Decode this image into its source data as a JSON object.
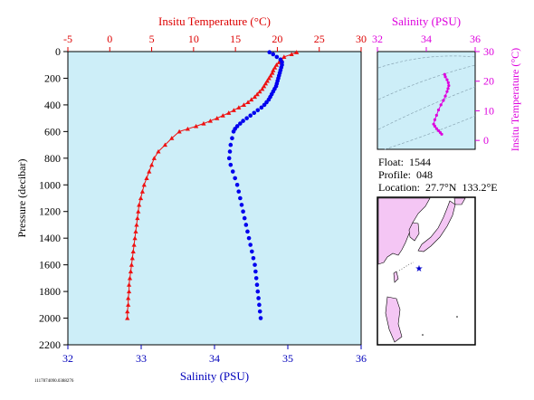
{
  "main_chart": {
    "top_axis_title": "Insitu Temperature (°C)",
    "bottom_axis_title": "Salinity (PSU)",
    "left_axis_title": "Pressure (decibar)",
    "temp_ticks": [
      "-5",
      "0",
      "5",
      "10",
      "15",
      "20",
      "25",
      "30"
    ],
    "sal_ticks": [
      "32",
      "33",
      "34",
      "35",
      "36"
    ],
    "pressure_ticks": [
      "0",
      "200",
      "400",
      "600",
      "800",
      "1000",
      "1200",
      "1400",
      "1600",
      "1800",
      "2000",
      "2200"
    ],
    "colors": {
      "temperature": "#ee1111",
      "salinity": "#0000ee",
      "plot_bg": "#cdeef8",
      "axis_title": "#dd0000"
    }
  },
  "ts_chart": {
    "top_axis_title": "Salinity (PSU)",
    "right_axis_title": "Insitu Temperature (°C)",
    "sal_ticks": [
      "32",
      "34",
      "36"
    ],
    "temp_ticks": [
      "0",
      "10",
      "20",
      "30"
    ],
    "color": "#dd00dd"
  },
  "info": {
    "float_line": "Float:  1544",
    "profile_line": "Profile:  048",
    "location_line": "Location:  27.7°N  133.2°E"
  },
  "footer_code": "1117874090.0388276",
  "chart_data": [
    {
      "type": "scatter",
      "title": "",
      "x_top_label": "Insitu Temperature (°C)",
      "x_top_range": [
        -5,
        30
      ],
      "x_bottom_label": "Salinity (PSU)",
      "x_bottom_range": [
        32,
        36
      ],
      "ylabel": "Pressure (decibar)",
      "ylim": [
        2200,
        0
      ],
      "series": [
        {
          "axis": "top",
          "marker": "triangle",
          "color": "#ee1111",
          "points": [
            [
              22.3,
              5
            ],
            [
              21.7,
              20
            ],
            [
              20.8,
              40
            ],
            [
              20.5,
              60
            ],
            [
              20.2,
              80
            ],
            [
              19.9,
              100
            ],
            [
              19.7,
              120
            ],
            [
              19.5,
              140
            ],
            [
              19.4,
              160
            ],
            [
              19.2,
              180
            ],
            [
              19.0,
              200
            ],
            [
              18.8,
              220
            ],
            [
              18.6,
              240
            ],
            [
              18.4,
              260
            ],
            [
              18.2,
              280
            ],
            [
              17.9,
              300
            ],
            [
              17.6,
              320
            ],
            [
              17.3,
              340
            ],
            [
              16.9,
              360
            ],
            [
              16.5,
              380
            ],
            [
              16.0,
              400
            ],
            [
              15.4,
              420
            ],
            [
              14.8,
              440
            ],
            [
              14.2,
              460
            ],
            [
              13.5,
              480
            ],
            [
              12.8,
              500
            ],
            [
              12.0,
              520
            ],
            [
              11.2,
              540
            ],
            [
              10.3,
              560
            ],
            [
              9.3,
              580
            ],
            [
              8.3,
              600
            ],
            [
              7.4,
              650
            ],
            [
              6.6,
              700
            ],
            [
              5.8,
              750
            ],
            [
              5.3,
              800
            ],
            [
              5.0,
              850
            ],
            [
              4.7,
              900
            ],
            [
              4.4,
              950
            ],
            [
              4.1,
              1000
            ],
            [
              3.9,
              1050
            ],
            [
              3.7,
              1100
            ],
            [
              3.5,
              1150
            ],
            [
              3.4,
              1200
            ],
            [
              3.3,
              1250
            ],
            [
              3.2,
              1300
            ],
            [
              3.1,
              1350
            ],
            [
              3.0,
              1400
            ],
            [
              2.9,
              1450
            ],
            [
              2.8,
              1500
            ],
            [
              2.7,
              1550
            ],
            [
              2.6,
              1600
            ],
            [
              2.5,
              1650
            ],
            [
              2.4,
              1700
            ],
            [
              2.3,
              1750
            ],
            [
              2.3,
              1800
            ],
            [
              2.2,
              1850
            ],
            [
              2.2,
              1900
            ],
            [
              2.1,
              1950
            ],
            [
              2.1,
              2000
            ]
          ]
        },
        {
          "axis": "bottom",
          "marker": "circle",
          "color": "#0000ee",
          "points": [
            [
              34.75,
              5
            ],
            [
              34.8,
              20
            ],
            [
              34.85,
              40
            ],
            [
              34.9,
              60
            ],
            [
              34.92,
              80
            ],
            [
              34.92,
              100
            ],
            [
              34.91,
              120
            ],
            [
              34.9,
              140
            ],
            [
              34.89,
              160
            ],
            [
              34.88,
              180
            ],
            [
              34.87,
              200
            ],
            [
              34.86,
              220
            ],
            [
              34.85,
              240
            ],
            [
              34.84,
              260
            ],
            [
              34.82,
              280
            ],
            [
              34.8,
              300
            ],
            [
              34.78,
              320
            ],
            [
              34.76,
              340
            ],
            [
              34.74,
              360
            ],
            [
              34.71,
              380
            ],
            [
              34.68,
              400
            ],
            [
              34.64,
              420
            ],
            [
              34.59,
              440
            ],
            [
              34.54,
              460
            ],
            [
              34.49,
              480
            ],
            [
              34.44,
              500
            ],
            [
              34.39,
              520
            ],
            [
              34.35,
              540
            ],
            [
              34.31,
              560
            ],
            [
              34.28,
              580
            ],
            [
              34.26,
              600
            ],
            [
              34.24,
              650
            ],
            [
              34.22,
              700
            ],
            [
              34.21,
              750
            ],
            [
              34.2,
              800
            ],
            [
              34.22,
              850
            ],
            [
              34.25,
              900
            ],
            [
              34.28,
              950
            ],
            [
              34.31,
              1000
            ],
            [
              34.33,
              1050
            ],
            [
              34.35,
              1100
            ],
            [
              34.37,
              1150
            ],
            [
              34.39,
              1200
            ],
            [
              34.41,
              1250
            ],
            [
              34.43,
              1300
            ],
            [
              34.45,
              1350
            ],
            [
              34.47,
              1400
            ],
            [
              34.49,
              1450
            ],
            [
              34.51,
              1500
            ],
            [
              34.53,
              1550
            ],
            [
              34.55,
              1600
            ],
            [
              34.56,
              1650
            ],
            [
              34.57,
              1700
            ],
            [
              34.58,
              1750
            ],
            [
              34.59,
              1800
            ],
            [
              34.6,
              1850
            ],
            [
              34.61,
              1900
            ],
            [
              34.62,
              1950
            ],
            [
              34.63,
              2000
            ]
          ]
        }
      ]
    },
    {
      "type": "scatter",
      "title": "",
      "xlabel": "Salinity (PSU)",
      "xlim": [
        32,
        36
      ],
      "ylabel": "Insitu Temperature (°C)",
      "ylim": [
        -3,
        30
      ],
      "series": [
        {
          "color": "#dd00dd",
          "points": [
            [
              34.75,
              22.3
            ],
            [
              34.78,
              21.5
            ],
            [
              34.85,
              20.5
            ],
            [
              34.9,
              19.5
            ],
            [
              34.92,
              18.5
            ],
            [
              34.89,
              17.5
            ],
            [
              34.85,
              16.5
            ],
            [
              34.78,
              15.0
            ],
            [
              34.7,
              13.5
            ],
            [
              34.6,
              12.0
            ],
            [
              34.5,
              10.3
            ],
            [
              34.42,
              8.5
            ],
            [
              34.35,
              7.0
            ],
            [
              34.3,
              5.5
            ],
            [
              34.35,
              4.8
            ],
            [
              34.42,
              4.0
            ],
            [
              34.5,
              3.3
            ],
            [
              34.57,
              2.7
            ],
            [
              34.63,
              2.1
            ]
          ]
        }
      ]
    }
  ]
}
